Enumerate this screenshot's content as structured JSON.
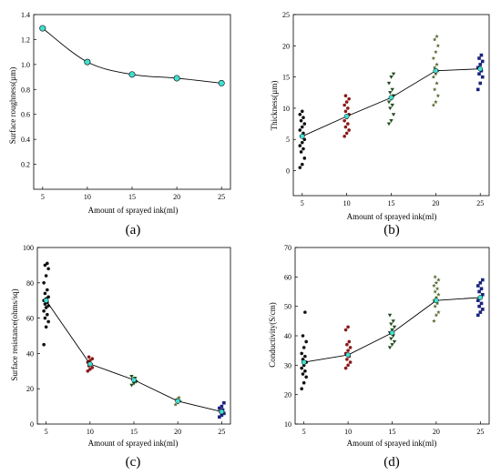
{
  "chart_data": [
    {
      "type": "line",
      "panel_label": "(a)",
      "xlabel": "Amount of sprayed ink(ml)",
      "ylabel": "Surface roughness(µm)",
      "x": [
        5,
        10,
        15,
        20,
        25
      ],
      "y": [
        1.29,
        1.02,
        0.92,
        0.89,
        0.85
      ],
      "xlim": [
        4,
        26
      ],
      "ylim": [
        0,
        1.4
      ],
      "xticks": [
        5,
        10,
        15,
        20,
        25
      ],
      "yticks": [
        0.2,
        0.4,
        0.6,
        0.8,
        1.0,
        1.2,
        1.4
      ],
      "ytick_labels": [
        "0.2",
        "0.4",
        "0.6",
        "0.8",
        "1.0",
        "1.2",
        "1.4"
      ],
      "smooth": true,
      "marker_color": "#40e0d0",
      "line_color": "#000000"
    },
    {
      "type": "scatter",
      "panel_label": "(b)",
      "xlabel": "Amount of sprayed ink(ml)",
      "ylabel": "Thickness(µm)",
      "xlim": [
        4,
        26
      ],
      "ylim": [
        -4,
        25
      ],
      "xticks": [
        5,
        10,
        15,
        20,
        25
      ],
      "yticks": [
        0,
        5,
        10,
        15,
        20,
        25
      ],
      "ytick_labels": [
        "0",
        "5",
        "10",
        "15",
        "20",
        "25"
      ],
      "smooth": false,
      "line_color": "#000000",
      "mean_color": "#40e0d0",
      "mean": {
        "x": [
          5,
          10,
          15,
          20,
          25
        ],
        "y": [
          5.5,
          8.7,
          11.7,
          16.0,
          16.3
        ]
      },
      "groups": [
        {
          "x": 5,
          "color": "#111111",
          "marker": "circle",
          "values": [
            0.5,
            1,
            2,
            3,
            3.5,
            4,
            4.5,
            5,
            5.5,
            6,
            6.5,
            7,
            7.5,
            8,
            8.5,
            9,
            9.5
          ]
        },
        {
          "x": 10,
          "color": "#8b1a1a",
          "marker": "circle",
          "values": [
            5.5,
            6,
            6.5,
            7,
            7.5,
            8,
            8.5,
            9,
            9.5,
            10,
            10.5,
            11,
            11.5,
            12
          ]
        },
        {
          "x": 15,
          "color": "#1f4d1f",
          "marker": "triangle",
          "values": [
            7.5,
            8,
            9,
            10,
            10.5,
            11,
            11.5,
            12,
            12.5,
            13,
            14,
            15,
            15.5
          ]
        },
        {
          "x": 20,
          "color": "#556b2f",
          "marker": "star",
          "values": [
            10.5,
            11,
            12,
            13,
            14,
            15,
            15.5,
            16,
            16.5,
            17,
            18,
            19,
            20,
            21,
            21.5
          ]
        },
        {
          "x": 25,
          "color": "#1a237e",
          "marker": "square",
          "values": [
            13,
            14,
            15,
            15.5,
            16,
            16.5,
            17,
            17.5,
            18,
            18.5
          ]
        }
      ]
    },
    {
      "type": "scatter",
      "panel_label": "(c)",
      "xlabel": "Amount of sprayed ink(ml)",
      "ylabel": "Surface resistance(ohms/sq)",
      "xlim": [
        4,
        26
      ],
      "ylim": [
        0,
        100
      ],
      "xticks": [
        5,
        10,
        15,
        20,
        25
      ],
      "yticks": [
        0,
        20,
        40,
        60,
        80,
        100
      ],
      "ytick_labels": [
        "0",
        "20",
        "40",
        "60",
        "80",
        "100"
      ],
      "smooth": false,
      "line_color": "#000000",
      "mean_color": "#40e0d0",
      "mean": {
        "x": [
          5,
          10,
          15,
          20,
          25
        ],
        "y": [
          70,
          34,
          25,
          13,
          7
        ]
      },
      "groups": [
        {
          "x": 5,
          "color": "#111111",
          "marker": "circle",
          "values": [
            45,
            55,
            58,
            60,
            62,
            64,
            66,
            67,
            68,
            69,
            70,
            71,
            72,
            74,
            76,
            80,
            84,
            88,
            90,
            91
          ]
        },
        {
          "x": 10,
          "color": "#8b1a1a",
          "marker": "circle",
          "values": [
            30,
            31,
            32,
            33,
            34,
            35,
            36,
            37,
            38
          ]
        },
        {
          "x": 15,
          "color": "#1f4d1f",
          "marker": "triangle",
          "values": [
            22,
            23,
            24,
            25,
            26,
            27
          ]
        },
        {
          "x": 20,
          "color": "#556b2f",
          "marker": "star",
          "values": [
            11,
            12,
            13,
            14,
            15
          ]
        },
        {
          "x": 25,
          "color": "#1a237e",
          "marker": "square",
          "values": [
            4,
            5,
            6,
            7,
            8,
            9,
            10,
            12
          ]
        }
      ]
    },
    {
      "type": "scatter",
      "panel_label": "(d)",
      "xlabel": "Amount of sprayed ink(ml)",
      "ylabel": "Conductivity(S/cm)",
      "xlim": [
        4,
        26
      ],
      "ylim": [
        10,
        70
      ],
      "xticks": [
        5,
        10,
        15,
        20,
        25
      ],
      "yticks": [
        10,
        20,
        30,
        40,
        50,
        60,
        70
      ],
      "ytick_labels": [
        "10",
        "20",
        "30",
        "40",
        "50",
        "60",
        "70"
      ],
      "smooth": false,
      "line_color": "#000000",
      "mean_color": "#40e0d0",
      "mean": {
        "x": [
          5,
          10,
          15,
          20,
          25
        ],
        "y": [
          31,
          33.5,
          41,
          52,
          53
        ]
      },
      "groups": [
        {
          "x": 5,
          "color": "#111111",
          "marker": "circle",
          "values": [
            22,
            24,
            26,
            27,
            28,
            29,
            30,
            31,
            32,
            33,
            34,
            36,
            38,
            40,
            48
          ]
        },
        {
          "x": 10,
          "color": "#8b1a1a",
          "marker": "circle",
          "values": [
            29,
            30,
            31,
            32,
            33,
            34,
            35,
            36,
            37,
            38,
            42,
            43
          ]
        },
        {
          "x": 15,
          "color": "#1f4d1f",
          "marker": "triangle",
          "values": [
            36,
            37,
            38,
            39,
            40,
            41,
            42,
            43,
            44,
            45,
            47
          ]
        },
        {
          "x": 20,
          "color": "#556b2f",
          "marker": "star",
          "values": [
            45,
            47,
            48,
            50,
            51,
            52,
            53,
            54,
            55,
            56,
            57,
            58,
            59,
            60
          ]
        },
        {
          "x": 25,
          "color": "#1a237e",
          "marker": "square",
          "values": [
            47,
            48,
            49,
            50,
            51,
            52,
            53,
            54,
            55,
            56,
            57,
            58,
            59
          ]
        }
      ]
    }
  ]
}
